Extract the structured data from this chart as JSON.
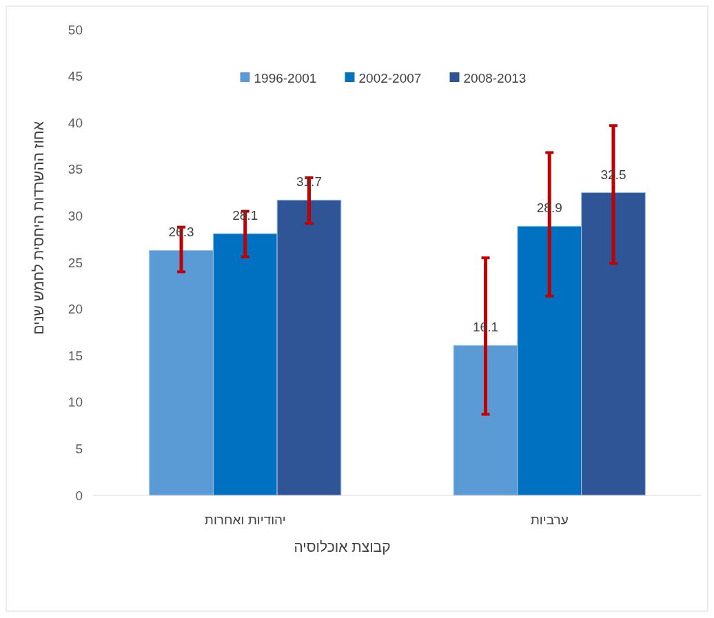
{
  "chart_data": {
    "type": "bar",
    "xlabel": "קבוצת אוכלוסיה",
    "ylabel": "אחוז ההשרדות היחסית לחמש שנים",
    "categories": [
      "יהודיות  ואחרות",
      "ערביות"
    ],
    "series": [
      {
        "name": "1996-2001",
        "color": "#5b9bd5",
        "values": [
          26.3,
          16.1
        ],
        "errors": [
          [
            24.0,
            28.8
          ],
          [
            8.7,
            25.5
          ]
        ]
      },
      {
        "name": "2002-2007",
        "color": "#0070c0",
        "values": [
          28.1,
          28.9
        ],
        "errors": [
          [
            25.6,
            30.5
          ],
          [
            21.4,
            36.8
          ]
        ]
      },
      {
        "name": "2008-2013",
        "color": "#2f5597",
        "values": [
          31.7,
          32.5
        ],
        "errors": [
          [
            29.2,
            34.1
          ],
          [
            24.9,
            39.7
          ]
        ]
      }
    ],
    "ylim": [
      0,
      50
    ],
    "yticks": [
      0,
      5,
      10,
      15,
      20,
      25,
      30,
      35,
      40,
      45,
      50
    ],
    "grid": false,
    "legend": "top",
    "data_labels": true
  }
}
